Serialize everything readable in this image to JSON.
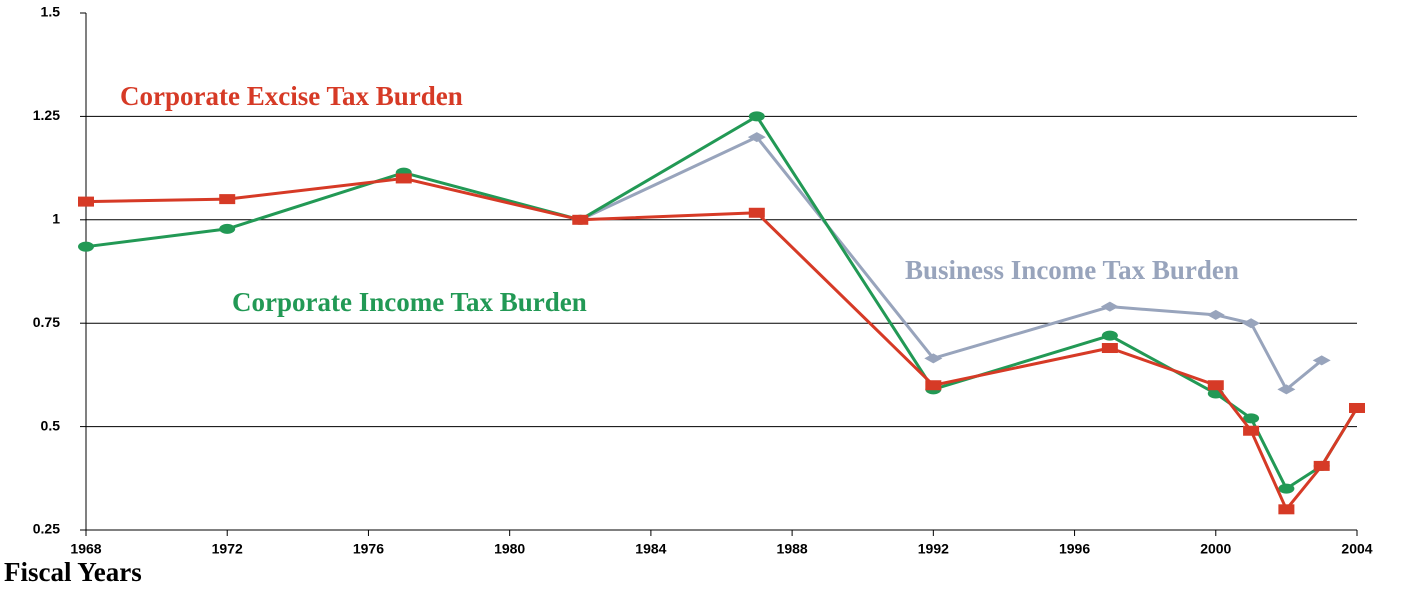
{
  "chart_data": {
    "type": "line",
    "x_label": "Fiscal Years",
    "x": [
      1968,
      1972,
      1977,
      1982,
      1987,
      1992,
      1997,
      2000,
      2001,
      2002,
      2003,
      2004
    ],
    "series": [
      {
        "name": "Corporate Excise Tax Burden",
        "color": "#d63a26",
        "marker": "square",
        "values": [
          1.044,
          1.05,
          1.1,
          1.0,
          1.017,
          0.6,
          0.69,
          0.6,
          0.49,
          0.3,
          0.405,
          0.545
        ]
      },
      {
        "name": "Corporate  Income Tax Burden",
        "color": "#229955",
        "marker": "circle",
        "values": [
          0.935,
          0.978,
          1.114,
          1.0,
          1.25,
          0.59,
          0.72,
          0.58,
          0.52,
          0.35,
          0.405,
          0.545
        ]
      },
      {
        "name": "Business Income Tax Burden",
        "color": "#98a4bc",
        "marker": "diamond",
        "values": [
          null,
          null,
          null,
          1.0,
          1.2,
          0.665,
          0.79,
          0.77,
          0.75,
          0.59,
          0.66,
          null
        ]
      }
    ],
    "xlim": [
      1968,
      2004
    ],
    "xticks": [
      1968,
      1972,
      1976,
      1980,
      1984,
      1988,
      1992,
      1996,
      2000,
      2004
    ],
    "ylim": [
      0.25,
      1.5
    ],
    "yticks": [
      0.25,
      0.5,
      0.75,
      1,
      1.25,
      1.5
    ],
    "grid": true
  }
}
